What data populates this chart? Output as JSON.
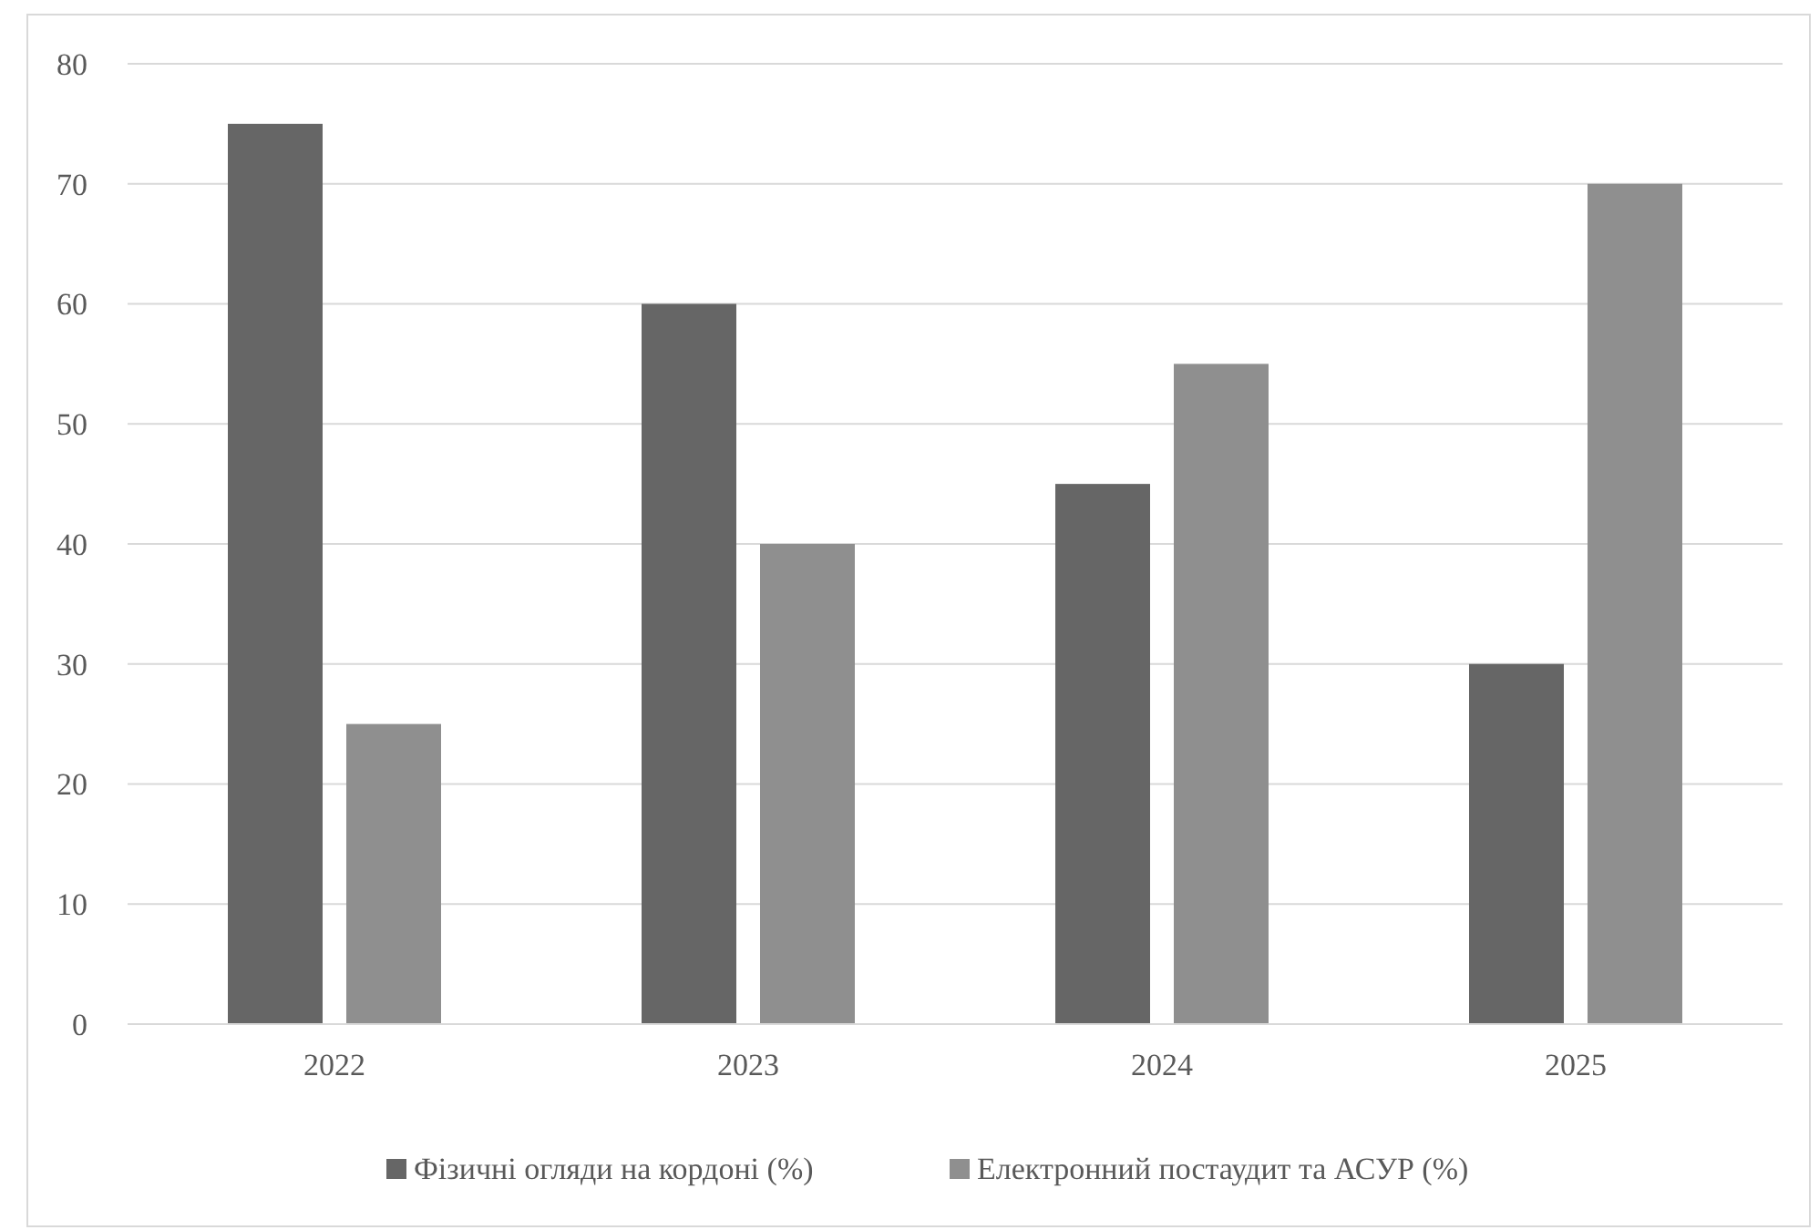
{
  "chart_data": {
    "type": "bar",
    "categories": [
      "2022",
      "2023",
      "2024",
      "2025"
    ],
    "series": [
      {
        "name": "Фізичні огляди на кордоні (%)",
        "color": "#666666",
        "values": [
          75,
          60,
          45,
          30
        ]
      },
      {
        "name": "Електронний постаудит та АСУР (%)",
        "color": "#8f8f8f",
        "values": [
          25,
          40,
          55,
          70
        ]
      }
    ],
    "ylim": [
      0,
      80
    ],
    "yticks": [
      0,
      10,
      20,
      30,
      40,
      50,
      60,
      70,
      80
    ],
    "grid": "y",
    "legend": "bottom"
  }
}
